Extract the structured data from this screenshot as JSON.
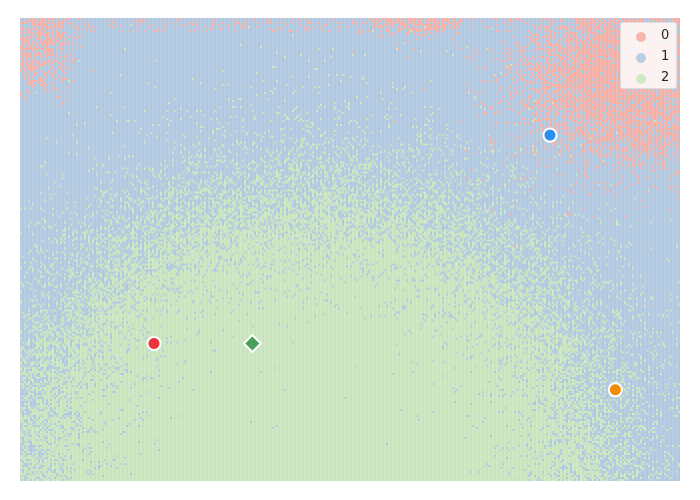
{
  "chart_data": {
    "type": "heatmap",
    "description_visible": false,
    "xlim": [
      0,
      1
    ],
    "ylim": [
      0,
      1
    ],
    "classes": [
      {
        "label": "0",
        "color": "#f8b6ad"
      },
      {
        "label": "1",
        "color": "#b8cee4"
      },
      {
        "label": "2",
        "color": "#cfe9c4"
      }
    ],
    "markers": [
      {
        "name": "blue-agent",
        "shape": "circle",
        "color": "#2b8ef0",
        "x": 0.803,
        "y": 0.747
      },
      {
        "name": "red-agent",
        "shape": "circle",
        "color": "#e8353a",
        "x": 0.203,
        "y": 0.297
      },
      {
        "name": "green-goal",
        "shape": "diamond",
        "color": "#4aa05a",
        "x": 0.352,
        "y": 0.297
      },
      {
        "name": "orange-agent",
        "shape": "circle",
        "color": "#f08c05",
        "x": 0.902,
        "y": 0.197
      }
    ],
    "legend": {
      "position": "top-right",
      "entries": [
        "0",
        "1",
        "2"
      ]
    }
  }
}
